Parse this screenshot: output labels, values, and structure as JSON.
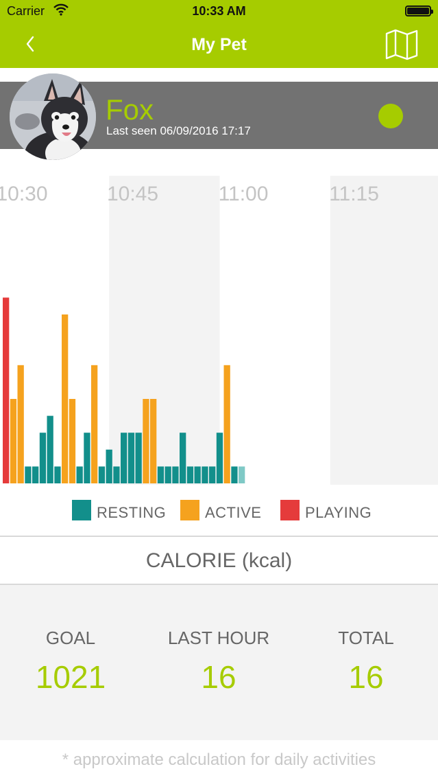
{
  "status_bar": {
    "carrier": "Carrier",
    "time": "10:33 AM",
    "wifi_icon": "wifi-icon",
    "battery_icon": "battery-icon"
  },
  "nav": {
    "title": "My Pet",
    "back_icon": "chevron-left-icon",
    "map_icon": "map-icon"
  },
  "pet": {
    "name": "Fox",
    "last_seen": "Last seen 06/09/2016 17:17",
    "avatar": "pet-avatar-photo",
    "status": "online"
  },
  "colors": {
    "brand": "#a6cc00",
    "header_bg": "#727272",
    "resting": "#128f8b",
    "active": "#f5a21e",
    "playing": "#e53b3b",
    "current": "#7fc9c6"
  },
  "chart_data": {
    "type": "bar",
    "x_tick_labels": [
      "10:30",
      "10:45",
      "11:00",
      "11:15"
    ],
    "y_range": [
      0,
      12
    ],
    "grid": "alternating shaded time columns",
    "legend_position": "bottom",
    "series": [
      {
        "name": "RESTING",
        "color": "#128f8b"
      },
      {
        "name": "ACTIVE",
        "color": "#f5a21e"
      },
      {
        "name": "PLAYING",
        "color": "#e53b3b"
      }
    ],
    "bars": [
      {
        "time": "10:30",
        "activity": "PLAYING",
        "value": 11
      },
      {
        "time": "10:31",
        "activity": "ACTIVE",
        "value": 5
      },
      {
        "time": "10:32",
        "activity": "ACTIVE",
        "value": 7
      },
      {
        "time": "10:33",
        "activity": "RESTING",
        "value": 1
      },
      {
        "time": "10:34",
        "activity": "RESTING",
        "value": 1
      },
      {
        "time": "10:35",
        "activity": "RESTING",
        "value": 3
      },
      {
        "time": "10:36",
        "activity": "RESTING",
        "value": 4
      },
      {
        "time": "10:37",
        "activity": "RESTING",
        "value": 1
      },
      {
        "time": "10:38",
        "activity": "ACTIVE",
        "value": 10
      },
      {
        "time": "10:39",
        "activity": "ACTIVE",
        "value": 5
      },
      {
        "time": "10:40",
        "activity": "RESTING",
        "value": 1
      },
      {
        "time": "10:41",
        "activity": "RESTING",
        "value": 3
      },
      {
        "time": "10:42",
        "activity": "ACTIVE",
        "value": 7
      },
      {
        "time": "10:43",
        "activity": "RESTING",
        "value": 1
      },
      {
        "time": "10:44",
        "activity": "RESTING",
        "value": 2
      },
      {
        "time": "10:45",
        "activity": "RESTING",
        "value": 1
      },
      {
        "time": "10:46",
        "activity": "RESTING",
        "value": 3
      },
      {
        "time": "10:47",
        "activity": "RESTING",
        "value": 3
      },
      {
        "time": "10:48",
        "activity": "RESTING",
        "value": 3
      },
      {
        "time": "10:49",
        "activity": "ACTIVE",
        "value": 5
      },
      {
        "time": "10:50",
        "activity": "ACTIVE",
        "value": 5
      },
      {
        "time": "10:51",
        "activity": "RESTING",
        "value": 1
      },
      {
        "time": "10:52",
        "activity": "RESTING",
        "value": 1
      },
      {
        "time": "10:53",
        "activity": "RESTING",
        "value": 1
      },
      {
        "time": "10:54",
        "activity": "RESTING",
        "value": 3
      },
      {
        "time": "10:55",
        "activity": "RESTING",
        "value": 1
      },
      {
        "time": "10:56",
        "activity": "RESTING",
        "value": 1
      },
      {
        "time": "10:57",
        "activity": "RESTING",
        "value": 1
      },
      {
        "time": "10:58",
        "activity": "RESTING",
        "value": 1
      },
      {
        "time": "10:59",
        "activity": "RESTING",
        "value": 3
      },
      {
        "time": "11:00",
        "activity": "ACTIVE",
        "value": 7
      },
      {
        "time": "11:01",
        "activity": "RESTING",
        "value": 1
      },
      {
        "time": "11:02",
        "activity": "RESTING",
        "value": 1,
        "current": true
      }
    ]
  },
  "legend": {
    "resting": "RESTING",
    "active": "ACTIVE",
    "playing": "PLAYING"
  },
  "calorie": {
    "title": "CALORIE (kcal)",
    "goal_label": "GOAL",
    "goal_value": "1021",
    "last_hour_label": "LAST HOUR",
    "last_hour_value": "16",
    "total_label": "TOTAL",
    "total_value": "16",
    "footnote": "* approximate calculation for daily activities"
  }
}
